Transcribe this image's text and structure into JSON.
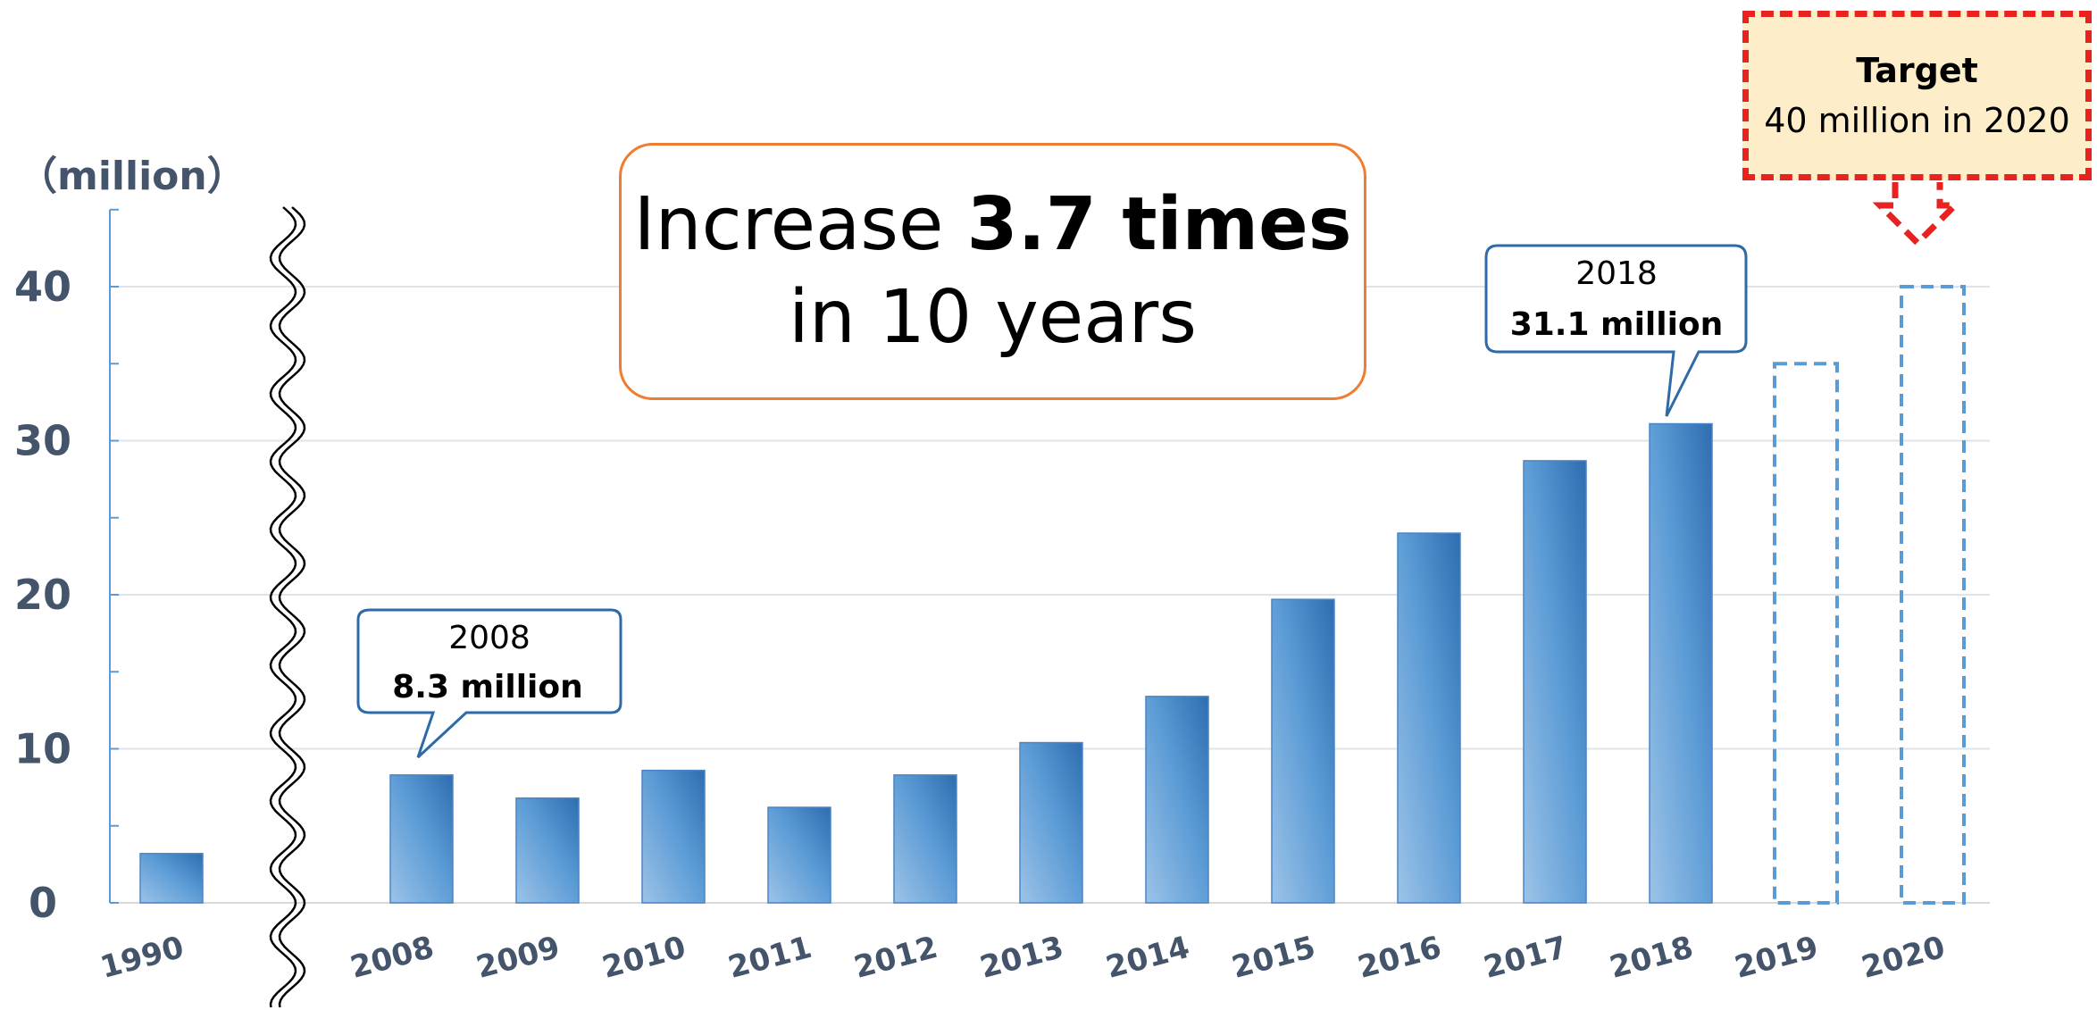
{
  "chart_data": {
    "type": "bar",
    "ylabel": "（million）",
    "yticks": [
      0,
      10,
      20,
      30,
      40
    ],
    "ylim": [
      0,
      45
    ],
    "grid": true,
    "axis_break": "between 1990 and 2008",
    "categories": [
      "1990",
      "2008",
      "2009",
      "2010",
      "2011",
      "2012",
      "2013",
      "2014",
      "2015",
      "2016",
      "2017",
      "2018",
      "2019",
      "2020"
    ],
    "values": [
      3.2,
      8.3,
      6.8,
      8.6,
      6.2,
      8.3,
      10.4,
      13.4,
      19.7,
      24.0,
      28.7,
      31.1,
      35,
      40
    ],
    "projected": [
      false,
      false,
      false,
      false,
      false,
      false,
      false,
      false,
      false,
      false,
      false,
      false,
      true,
      true
    ],
    "bar_color": "#4a8fd0",
    "projected_outline_color": "#5b9bd5"
  },
  "headline": {
    "prefix": "Increase ",
    "emphasis": "3.7 times",
    "line2": "in 10 years",
    "border_color": "#ed7d31"
  },
  "callout_2008": {
    "year": "2008",
    "value": "8.3 million",
    "border_color": "#2e6aa8"
  },
  "callout_2018": {
    "year": "2018",
    "value": "31.1 million",
    "border_color": "#2e6aa8"
  },
  "target": {
    "title": "Target",
    "text": "40 million in 2020",
    "border_color": "#e8231f",
    "fill_color": "#fdedc8"
  }
}
